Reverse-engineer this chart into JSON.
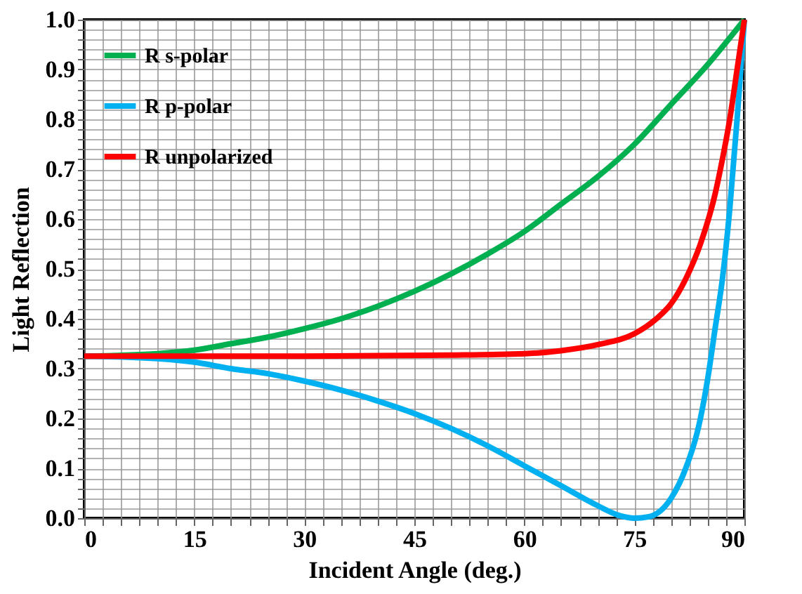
{
  "chart_data": {
    "type": "line",
    "xlabel": "Incident Angle (deg.)",
    "ylabel": "Light Reflection",
    "xlim": [
      0,
      90
    ],
    "xticks": [
      0,
      15,
      30,
      45,
      60,
      75,
      90
    ],
    "ylim": [
      0,
      1
    ],
    "yticks": [
      {
        "value": 0,
        "label": "0.0"
      },
      0.1,
      0.2,
      0.3,
      0.4,
      0.5,
      0.6,
      0.7,
      0.8,
      0.9,
      {
        "value": 1,
        "label": "1.0"
      }
    ],
    "grid": true,
    "legend": "top left",
    "marker": "none",
    "line_style": "solid",
    "series": [
      {
        "name": "R s-polar",
        "color": "#00b050",
        "x": [
          0,
          10,
          15,
          20,
          25,
          30,
          35,
          40,
          45,
          50,
          55,
          60,
          65,
          70,
          75,
          80,
          85,
          90
        ],
        "values": [
          0.325,
          0.33,
          0.337,
          0.35,
          0.363,
          0.38,
          0.4,
          0.425,
          0.455,
          0.49,
          0.53,
          0.575,
          0.63,
          0.685,
          0.75,
          0.83,
          0.91,
          1.0
        ]
      },
      {
        "name": "R p-polar",
        "color": "#00b0f0",
        "x": [
          0,
          10,
          15,
          20,
          25,
          30,
          35,
          40,
          45,
          50,
          55,
          60,
          65,
          70,
          73,
          75,
          77,
          80,
          82,
          84,
          85,
          86,
          87,
          88,
          89,
          90
        ],
        "values": [
          0.325,
          0.32,
          0.313,
          0.3,
          0.29,
          0.275,
          0.257,
          0.235,
          0.21,
          0.18,
          0.145,
          0.105,
          0.065,
          0.025,
          0.005,
          0.0,
          0.003,
          0.04,
          0.1,
          0.2,
          0.28,
          0.38,
          0.48,
          0.62,
          0.8,
          1.0
        ]
      },
      {
        "name": "R unpolarized",
        "color": "#ff0000",
        "x": [
          0,
          30,
          50,
          60,
          65,
          70,
          75,
          78,
          80,
          82,
          84,
          86,
          87,
          88,
          89,
          90
        ],
        "values": [
          0.325,
          0.325,
          0.327,
          0.33,
          0.336,
          0.348,
          0.37,
          0.4,
          0.43,
          0.48,
          0.55,
          0.65,
          0.72,
          0.8,
          0.9,
          1.0
        ]
      }
    ]
  }
}
